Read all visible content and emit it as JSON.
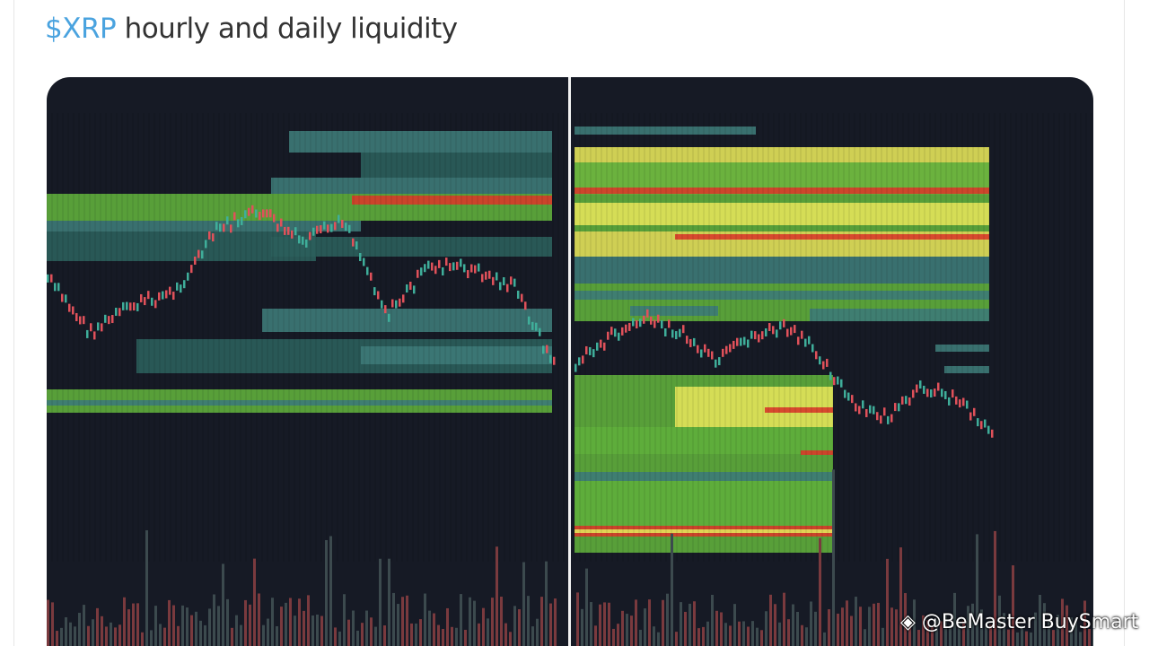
{
  "post": {
    "cashtag": "$XRP",
    "text": "hourly and daily liquidity",
    "watermark": "@BeMaster BuySmart"
  }
}
